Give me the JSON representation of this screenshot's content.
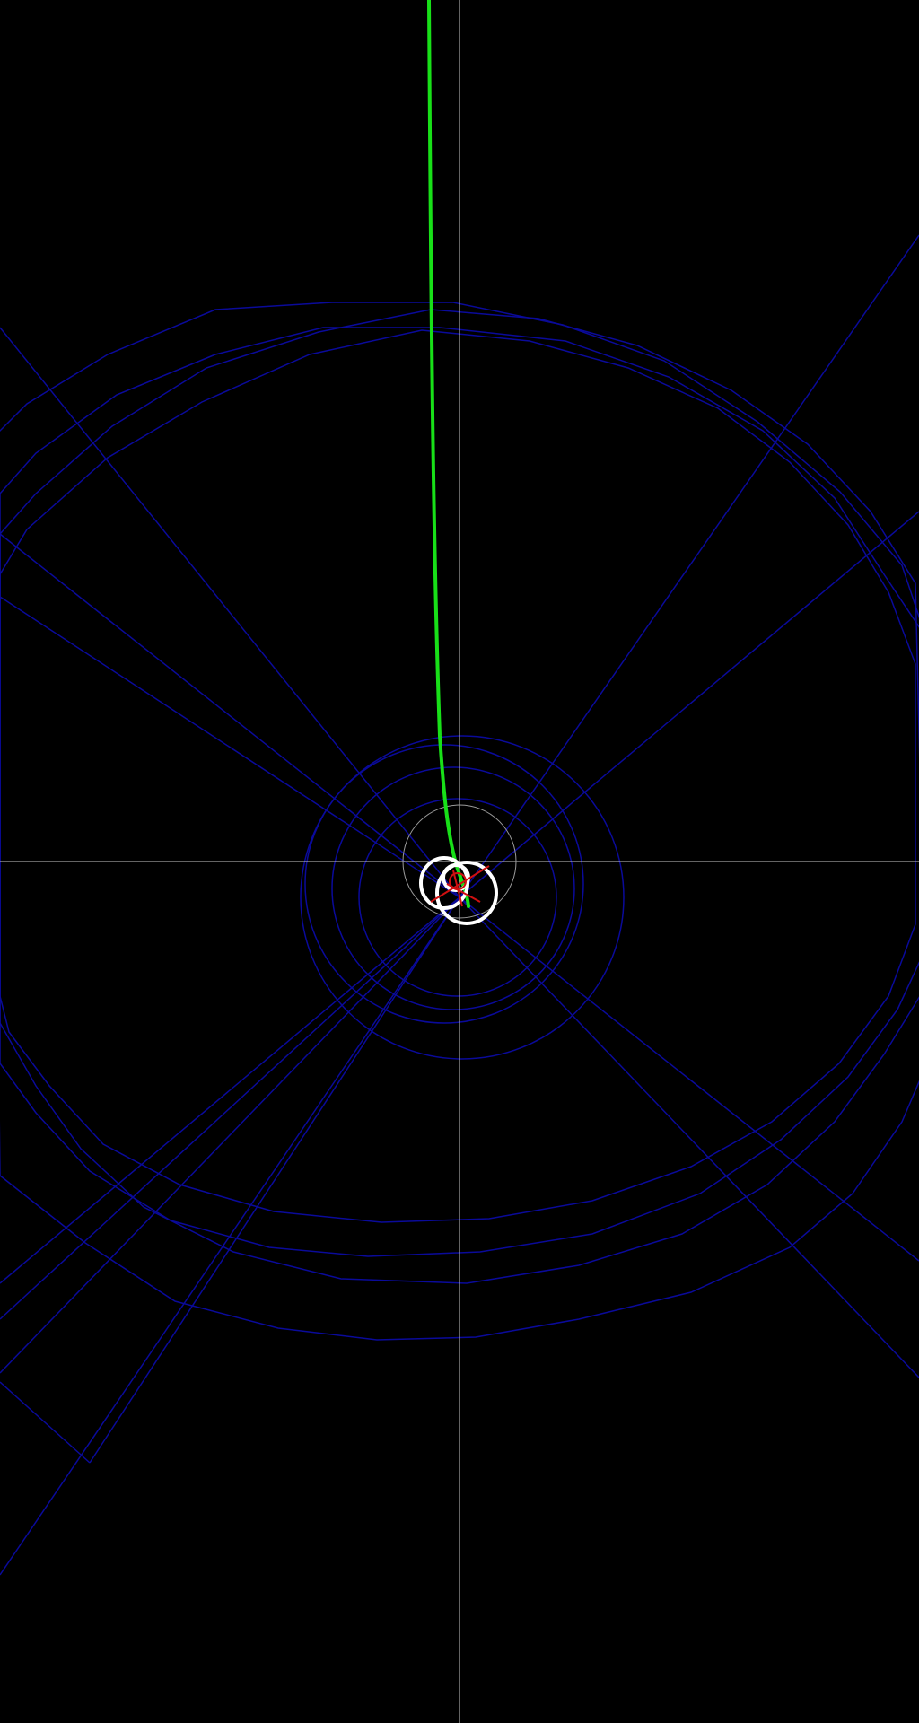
{
  "scene": {
    "background_color": "#000000",
    "axis_color": "#c8c8c8",
    "grid_color": "#0a0a9a",
    "trajectory_color": "#18e018",
    "orbit_color": "#ffffff",
    "ring_color": "#9a9a9a",
    "marker_color": "#d01010",
    "show_axes": true,
    "show_grid": true
  }
}
